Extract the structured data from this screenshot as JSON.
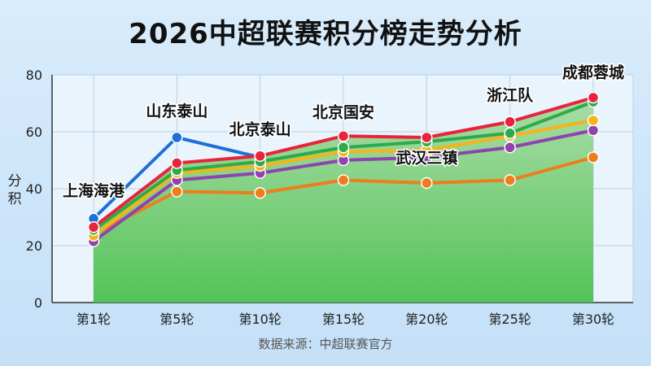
{
  "title": "2026中超联赛积分榜走势分析",
  "source": "数据来源：中超联赛官方",
  "colors": {
    "background": "#d6eafb",
    "plot_background": "#eaf4fd",
    "area_fill_top": "#a6dba2",
    "area_fill_bottom": "#4cc14f",
    "grid": "#b8cfe3"
  },
  "chart_data": {
    "type": "line",
    "title": "2026中超联赛积分榜走势分析",
    "xlabel": "",
    "ylabel": "分积",
    "ylim": [
      0,
      80
    ],
    "yticks": [
      0,
      20,
      40,
      60,
      80
    ],
    "grid": true,
    "categories": [
      "第1轮",
      "第5轮",
      "第10轮",
      "第15轮",
      "第20轮",
      "第25轮",
      "第30轮"
    ],
    "area_series": "成都蓉城",
    "series": [
      {
        "name": "山东泰山",
        "color": "#1f6fd9",
        "values": [
          29.5,
          58,
          51,
          null,
          null,
          null,
          null
        ]
      },
      {
        "name": "上海海港",
        "color": "#ee7d1c",
        "values": [
          24,
          39,
          38.5,
          43,
          42,
          43,
          51
        ]
      },
      {
        "name": "武汉三镇",
        "color": "#8e44ad",
        "values": [
          21.5,
          43,
          45.5,
          50,
          51,
          54.5,
          60.5
        ]
      },
      {
        "name": "北京国安",
        "color": "#f4b41a",
        "values": [
          23.5,
          45.5,
          48,
          53,
          53.5,
          58.5,
          64
        ]
      },
      {
        "name": "浙江队",
        "color": "#2faa4a",
        "values": [
          25.5,
          46.5,
          49.5,
          54.5,
          56.5,
          59.5,
          70.5
        ]
      },
      {
        "name": "成都蓉城",
        "color": "#e8243c",
        "values": [
          26.5,
          49,
          51.5,
          58.5,
          58,
          63.5,
          72
        ]
      }
    ],
    "annotations": [
      {
        "text": "上海海港",
        "x": "第1轮",
        "y": 37.5
      },
      {
        "text": "山东泰山",
        "x": "第5轮",
        "y": 65.5
      },
      {
        "text": "北京泰山",
        "x": "第10轮",
        "y": 59
      },
      {
        "text": "北京国安",
        "x": "第15轮",
        "y": 65
      },
      {
        "text": "武汉三镇",
        "x": "第20轮",
        "y": 49
      },
      {
        "text": "浙江队",
        "x": "第25轮",
        "y": 71
      },
      {
        "text": "成都蓉城",
        "x": "第30轮",
        "y": 79
      }
    ]
  }
}
